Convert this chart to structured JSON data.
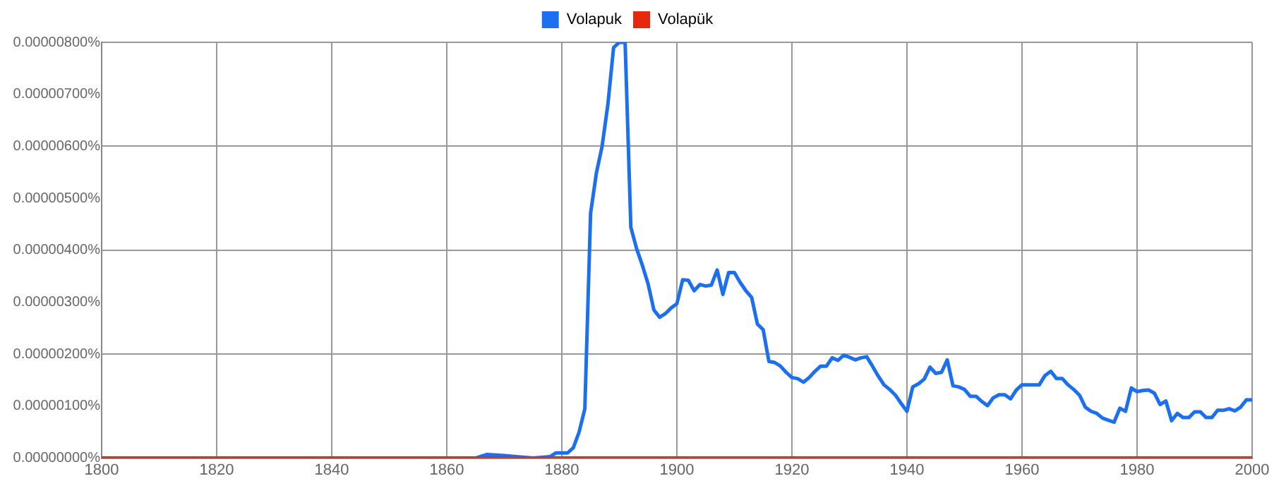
{
  "chart_data": {
    "type": "line",
    "xlim": [
      1800,
      2000
    ],
    "xticks": [
      1800,
      1820,
      1840,
      1860,
      1880,
      1900,
      1920,
      1940,
      1960,
      1980,
      2000
    ],
    "ylim": [
      0,
      8e-06
    ],
    "yticks": [
      {
        "value": 0,
        "label": "0.00000000%"
      },
      {
        "value": 1e-06,
        "label": "0.00000100%"
      },
      {
        "value": 2e-06,
        "label": "0.00000200%"
      },
      {
        "value": 3e-06,
        "label": "0.00000300%"
      },
      {
        "value": 4e-06,
        "label": "0.00000400%"
      },
      {
        "value": 5e-06,
        "label": "0.00000500%"
      },
      {
        "value": 6e-06,
        "label": "0.00000600%"
      },
      {
        "value": 7e-06,
        "label": "0.00000700%"
      },
      {
        "value": 8e-06,
        "label": "0.00000800%"
      }
    ],
    "grid": true,
    "legend": "top",
    "marker": "none",
    "line_style": "solid",
    "series": [
      {
        "name": "Volapuk",
        "color": "#1c6fef",
        "x": [
          1800,
          1860,
          1864,
          1865,
          1867,
          1870,
          1872,
          1875,
          1878,
          1879,
          1880,
          1881,
          1882,
          1883,
          1884,
          1885,
          1886,
          1887,
          1888,
          1889,
          1890,
          1891,
          1892,
          1893,
          1894,
          1895,
          1896,
          1897,
          1898,
          1899,
          1900,
          1901,
          1902,
          1903,
          1904,
          1905,
          1906,
          1907,
          1908,
          1909,
          1910,
          1911,
          1912,
          1913,
          1914,
          1915,
          1916,
          1917,
          1918,
          1919,
          1920,
          1921,
          1922,
          1923,
          1924,
          1925,
          1926,
          1927,
          1928,
          1929,
          1930,
          1931,
          1932,
          1933,
          1934,
          1935,
          1936,
          1937,
          1938,
          1939,
          1940,
          1941,
          1942,
          1943,
          1944,
          1945,
          1946,
          1947,
          1948,
          1949,
          1950,
          1951,
          1952,
          1953,
          1954,
          1955,
          1956,
          1957,
          1958,
          1959,
          1960,
          1961,
          1962,
          1963,
          1964,
          1965,
          1966,
          1967,
          1968,
          1969,
          1970,
          1971,
          1972,
          1973,
          1974,
          1975,
          1976,
          1977,
          1978,
          1979,
          1980,
          1981,
          1982,
          1983,
          1984,
          1985,
          1986,
          1987,
          1988,
          1989,
          1990,
          1991,
          1992,
          1993,
          1994,
          1995,
          1996,
          1997,
          1998,
          1999,
          2000
        ],
        "values": [
          0,
          0,
          0,
          0,
          7e-08,
          5e-08,
          3e-08,
          0,
          3e-08,
          1e-07,
          1e-07,
          1e-07,
          2e-07,
          5e-07,
          9.5e-07,
          4.71e-06,
          5.48e-06,
          6e-06,
          6.8e-06,
          7.9e-06,
          8e-06,
          8e-06,
          4.44e-06,
          4.03e-06,
          3.71e-06,
          3.35e-06,
          2.85e-06,
          2.71e-06,
          2.78e-06,
          2.89e-06,
          2.97e-06,
          3.43e-06,
          3.42e-06,
          3.22e-06,
          3.34e-06,
          3.31e-06,
          3.33e-06,
          3.62e-06,
          3.15e-06,
          3.57e-06,
          3.57e-06,
          3.38e-06,
          3.22e-06,
          3.09e-06,
          2.58e-06,
          2.47e-06,
          1.86e-06,
          1.84e-06,
          1.77e-06,
          1.65e-06,
          1.55e-06,
          1.53e-06,
          1.46e-06,
          1.55e-06,
          1.67e-06,
          1.77e-06,
          1.77e-06,
          1.93e-06,
          1.88e-06,
          1.98e-06,
          1.94e-06,
          1.89e-06,
          1.93e-06,
          1.95e-06,
          1.77e-06,
          1.58e-06,
          1.41e-06,
          1.32e-06,
          1.21e-06,
          1.05e-06,
          9e-07,
          1.37e-06,
          1.43e-06,
          1.52e-06,
          1.75e-06,
          1.63e-06,
          1.65e-06,
          1.89e-06,
          1.39e-06,
          1.37e-06,
          1.32e-06,
          1.19e-06,
          1.19e-06,
          1.09e-06,
          1.01e-06,
          1.16e-06,
          1.22e-06,
          1.22e-06,
          1.14e-06,
          1.31e-06,
          1.41e-06,
          1.41e-06,
          1.41e-06,
          1.41e-06,
          1.59e-06,
          1.67e-06,
          1.53e-06,
          1.53e-06,
          1.41e-06,
          1.32e-06,
          1.21e-06,
          9.8e-07,
          9e-07,
          8.6e-07,
          7.7e-07,
          7.3e-07,
          6.9e-07,
          9.6e-07,
          9e-07,
          1.35e-06,
          1.28e-06,
          1.3e-06,
          1.31e-06,
          1.25e-06,
          1.03e-06,
          1.1e-06,
          7.2e-07,
          8.6e-07,
          7.8e-07,
          7.8e-07,
          8.9e-07,
          8.9e-07,
          7.8e-07,
          7.8e-07,
          9.2e-07,
          9.2e-07,
          9.5e-07,
          9.1e-07,
          9.8e-07,
          1.12e-06,
          1.12e-06
        ]
      },
      {
        "name": "Volapük",
        "color": "#e6290c",
        "x": [
          1800,
          2000
        ],
        "values": [
          0,
          0
        ]
      }
    ]
  }
}
